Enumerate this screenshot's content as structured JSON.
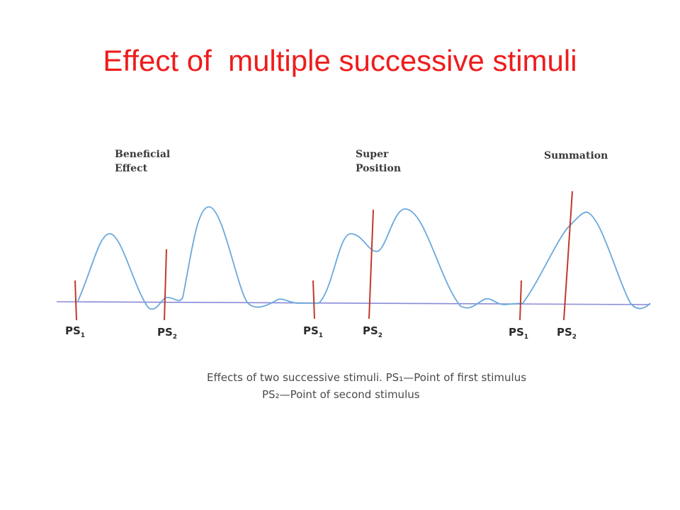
{
  "slide": {
    "title": "Effect of  multiple successive stimuli"
  },
  "figure": {
    "panels": [
      {
        "annotation_lines": [
          "Beneficial",
          "Effect"
        ],
        "markers": [
          {
            "label": "PS",
            "sub": "1"
          },
          {
            "label": "PS",
            "sub": "2"
          }
        ]
      },
      {
        "annotation_lines": [
          "Super",
          "Position"
        ],
        "markers": [
          {
            "label": "PS",
            "sub": "1"
          },
          {
            "label": "PS",
            "sub": "2"
          }
        ]
      },
      {
        "annotation_lines": [
          "Summation"
        ],
        "markers": [
          {
            "label": "PS",
            "sub": "1"
          },
          {
            "label": "PS",
            "sub": "2"
          }
        ]
      }
    ],
    "caption_line1": "Effects of two successive stimuli. PS₁—Point of first stimulus",
    "caption_line2": "PS₂—Point of second stimulus"
  },
  "colors": {
    "title": "#ee1c1c",
    "curve": "#6aa8dc",
    "baseline": "#8a8ad8",
    "stimulus_marker": "#c0392b"
  }
}
